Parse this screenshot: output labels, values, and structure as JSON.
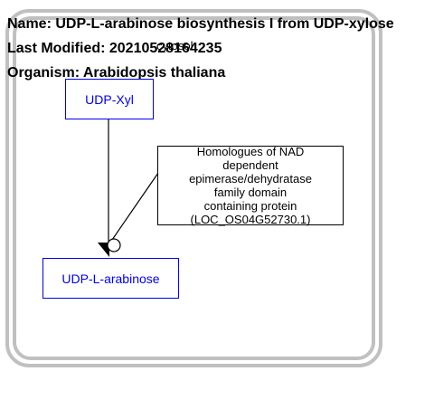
{
  "header": {
    "name_line": "Name: UDP-L-arabinose biosynthesis I from UDP-xylose",
    "modified_line": "Last Modified: 20210528164235",
    "organism_line": "Organism: Arabidopsis thaliana",
    "overlap_label": "cytosol"
  },
  "nodes": {
    "source_label": "UDP-Xyl",
    "product_label": "UDP-L-arabinose"
  },
  "enzyme": {
    "label_lines": [
      "Homologues of NAD",
      "dependent",
      "epimerase/dehydratase",
      "family domain",
      "containing protein",
      "(LOC_OS04G52730.1)"
    ]
  },
  "colors": {
    "compartment_border": "#c0c0c0",
    "metabolite_border": "#0000ee",
    "metabolite_text": "#0000ee",
    "enzyme_border": "#000000",
    "edge": "#000000"
  }
}
